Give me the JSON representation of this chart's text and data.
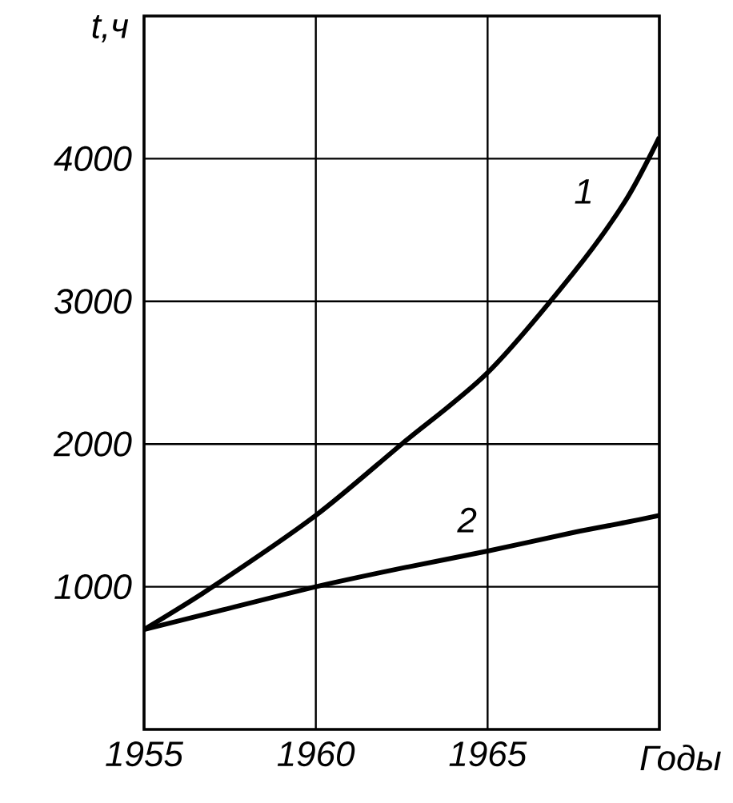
{
  "chart_data": {
    "type": "line",
    "xlabel": "Годы",
    "ylabel": "t,ч",
    "xlim": [
      1955,
      1970
    ],
    "ylim": [
      0,
      5000
    ],
    "xticks": [
      1955,
      1960,
      1965
    ],
    "yticks": [
      1000,
      2000,
      3000,
      4000
    ],
    "grid": true,
    "legend": false,
    "marker": "none",
    "line_style": "solid",
    "x": [
      1955,
      1957,
      1960,
      1962.5,
      1965,
      1967.5,
      1969,
      1970
    ],
    "series": [
      {
        "name": "1",
        "color": "#000000",
        "values": [
          700,
          1000,
          1500,
          2000,
          2500,
          3200,
          3700,
          4150
        ]
      },
      {
        "name": "2",
        "color": "#000000",
        "values": [
          700,
          820,
          1000,
          1130,
          1250,
          1380,
          1450,
          1500
        ]
      }
    ]
  }
}
